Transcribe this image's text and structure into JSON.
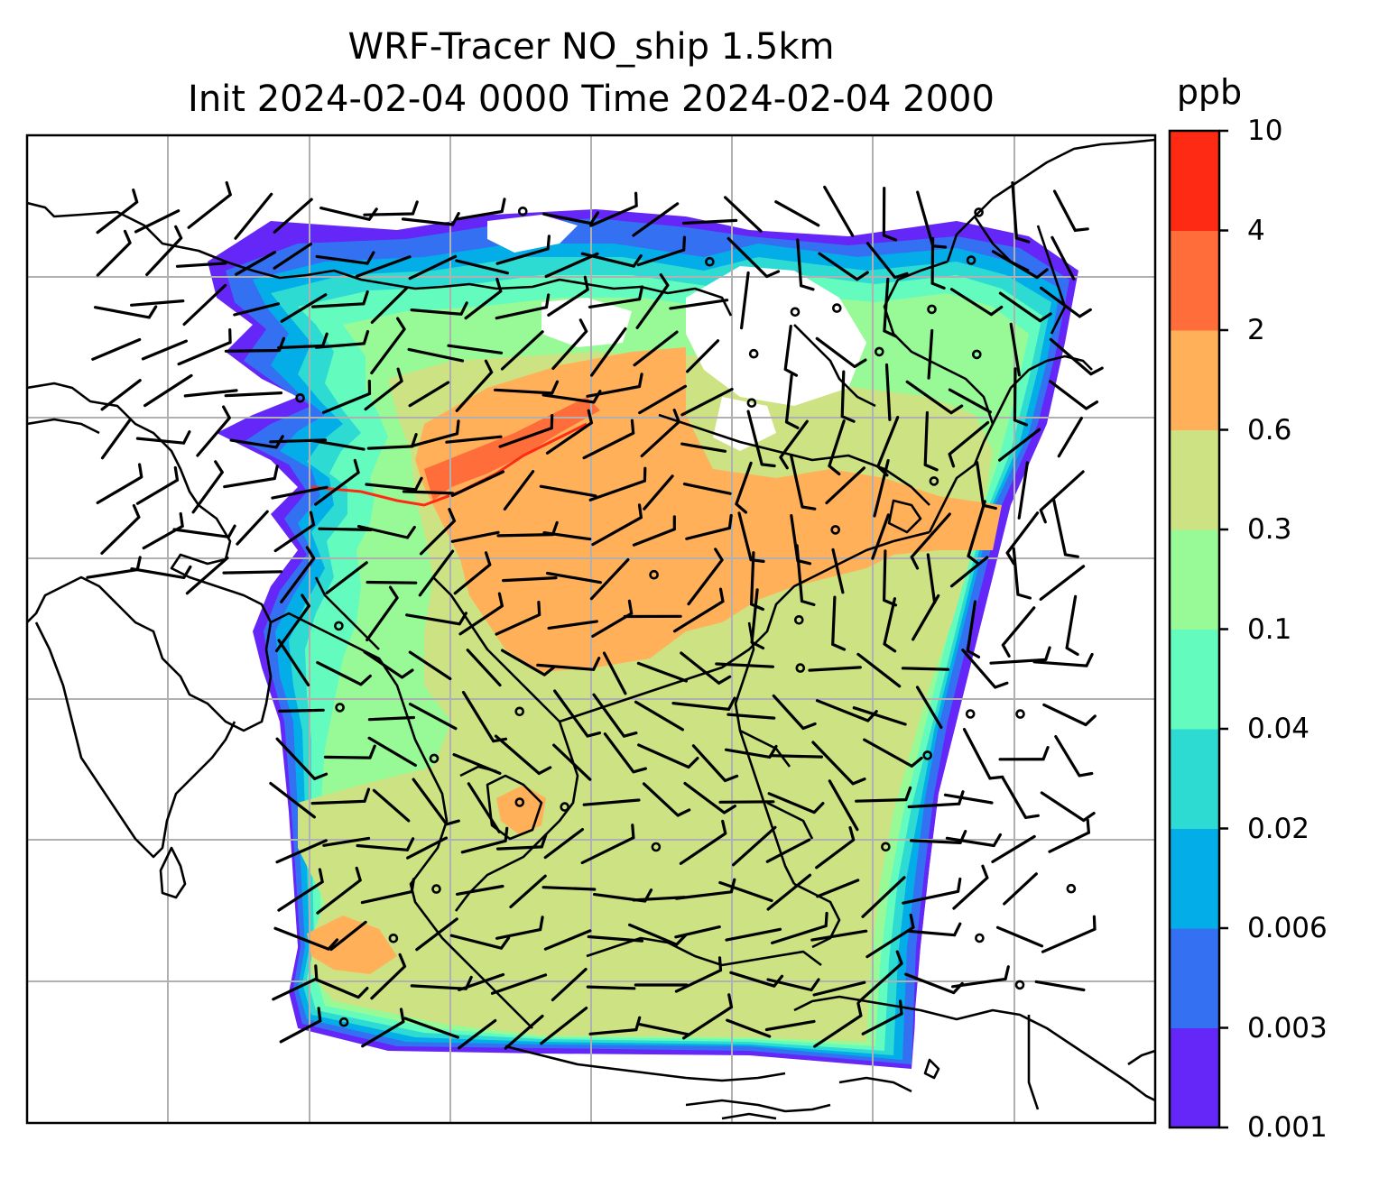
{
  "title": {
    "line1": "WRF-Tracer NO_ship 1.5km",
    "line2": "Init 2024-02-04 0000 Time 2024-02-04 2000"
  },
  "colorbar": {
    "unit": "ppb",
    "levels": [
      "0.001",
      "0.003",
      "0.006",
      "0.02",
      "0.04",
      "0.1",
      "0.3",
      "0.6",
      "2",
      "4",
      "10"
    ],
    "colors": [
      "#6427f7",
      "#3471f2",
      "#03aee8",
      "#2ddbd3",
      "#64fbbe",
      "#98fa96",
      "#cde282",
      "#ffb059",
      "#ff6e3a",
      "#ff2a14"
    ]
  },
  "map": {
    "frame_color": "#000000",
    "gridline_color": "#b0b0b0",
    "coastline_color": "#000000",
    "wind_barb_color": "#000000"
  }
}
